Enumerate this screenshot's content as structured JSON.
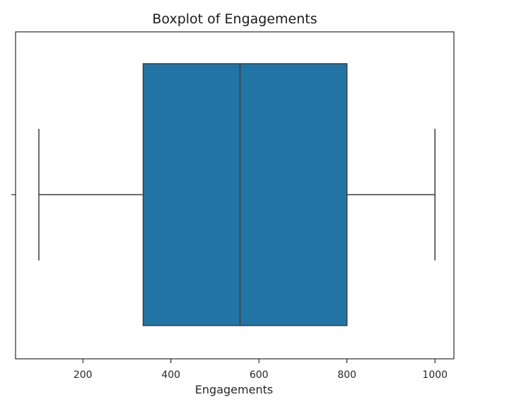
{
  "chart_data": {
    "type": "boxplot",
    "title": "Boxplot of Engagements",
    "xlabel": "Engagements",
    "ylabel": "",
    "xlim": [
      47,
      1043
    ],
    "xticks": [
      200,
      400,
      600,
      800,
      1000
    ],
    "xtick_labels": [
      "200",
      "400",
      "600",
      "800",
      "1000"
    ],
    "orientation": "horizontal",
    "grid": false,
    "series": [
      {
        "min": 100,
        "q1": 337,
        "median": 557,
        "q3": 800,
        "max": 1000
      }
    ],
    "colors": {
      "box_fill": "#2274a5",
      "line": "#3d3d3d",
      "frame": "#000000",
      "text": "#262626"
    }
  }
}
